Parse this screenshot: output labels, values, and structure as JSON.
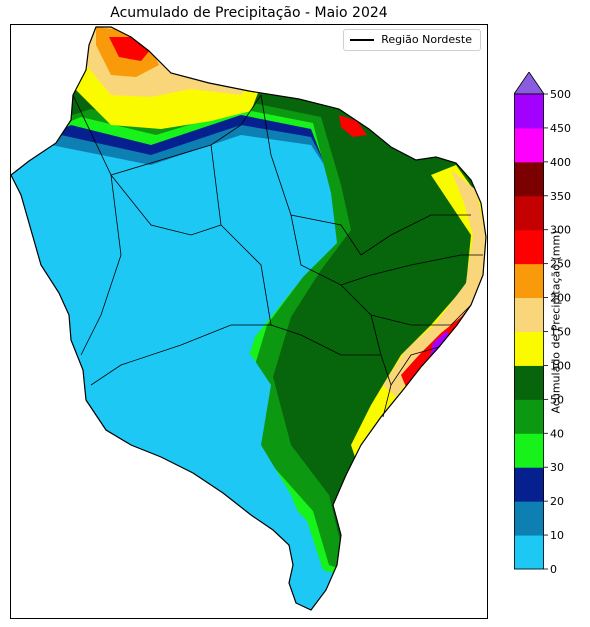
{
  "title": "Acumulado de Precipitação - Maio 2024",
  "legend": {
    "label": "Região Nordeste",
    "line_color": "#000000"
  },
  "colorbar": {
    "label": "Acumulado de Precipitação (mm)",
    "ticks": [
      "0",
      "10",
      "20",
      "30",
      "40",
      "50",
      "100",
      "150",
      "200",
      "250",
      "300",
      "350",
      "400",
      "450",
      "500"
    ],
    "bins": [
      {
        "range": "0-10",
        "color": "#1ec8f5"
      },
      {
        "range": "10-20",
        "color": "#0e7fb3"
      },
      {
        "range": "20-30",
        "color": "#06208f"
      },
      {
        "range": "30-40",
        "color": "#16f21a"
      },
      {
        "range": "40-50",
        "color": "#0d9812"
      },
      {
        "range": "50-100",
        "color": "#07660b"
      },
      {
        "range": "100-150",
        "color": "#fbfb00"
      },
      {
        "range": "150-200",
        "color": "#fad67a"
      },
      {
        "range": "200-250",
        "color": "#f99a0a"
      },
      {
        "range": "250-300",
        "color": "#fd0000"
      },
      {
        "range": "300-350",
        "color": "#c40000"
      },
      {
        "range": "350-400",
        "color": "#7c0000"
      },
      {
        "range": "400-450",
        "color": "#ff00ff"
      },
      {
        "range": "450-500",
        "color": "#a200ff"
      }
    ],
    "extend_color": "#8a5de0"
  }
}
